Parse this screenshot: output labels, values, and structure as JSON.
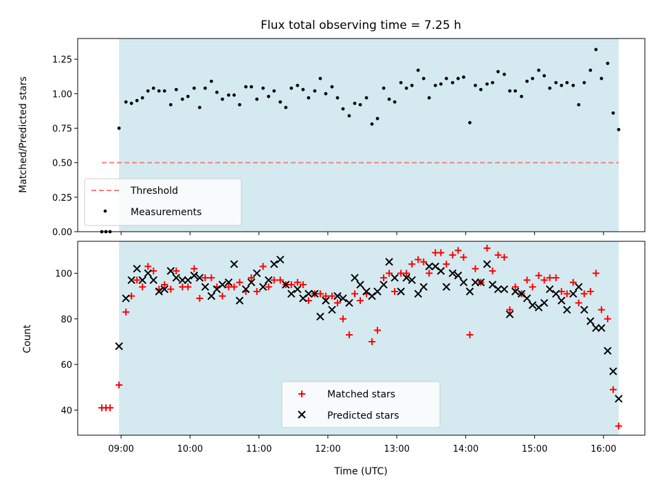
{
  "chart_data": [
    {
      "type": "scatter",
      "title": "Flux total observing time = 7.25 h",
      "ylabel": "Matched/Predicted stars",
      "xlabel": "",
      "ylim": [
        0,
        1.4
      ],
      "yticks": [
        0.0,
        0.25,
        0.5,
        0.75,
        1.0,
        1.25
      ],
      "ytick_labels": [
        "0.00",
        "0.25",
        "0.50",
        "0.75",
        "1.00",
        "1.25"
      ],
      "xlim": [
        8.37,
        16.6
      ],
      "xticks": [
        9,
        10,
        11,
        12,
        13,
        14,
        15,
        16
      ],
      "observing_window": [
        8.97,
        16.22
      ],
      "shade_color": "#d4eaf0",
      "legend": {
        "position": "lower-left",
        "threshold_label": "Threshold",
        "measurements_label": "Measurements"
      },
      "threshold": {
        "value": 0.5,
        "x_range": [
          8.72,
          16.22
        ],
        "color": "#f08080",
        "style": "dashed"
      },
      "series": [
        {
          "name": "Measurements",
          "color": "#000000",
          "x": [
            8.72,
            8.78,
            8.84,
            8.97,
            9.07,
            9.15,
            9.23,
            9.31,
            9.39,
            9.47,
            9.55,
            9.63,
            9.72,
            9.8,
            9.89,
            9.97,
            10.06,
            10.14,
            10.22,
            10.31,
            10.39,
            10.47,
            10.56,
            10.64,
            10.72,
            10.81,
            10.89,
            10.97,
            11.06,
            11.14,
            11.22,
            11.31,
            11.39,
            11.47,
            11.56,
            11.64,
            11.72,
            11.81,
            11.89,
            11.97,
            12.06,
            12.14,
            12.22,
            12.31,
            12.39,
            12.47,
            12.56,
            12.64,
            12.72,
            12.81,
            12.89,
            12.97,
            13.06,
            13.14,
            13.22,
            13.31,
            13.39,
            13.47,
            13.56,
            13.64,
            13.72,
            13.81,
            13.89,
            13.97,
            14.06,
            14.14,
            14.22,
            14.31,
            14.39,
            14.47,
            14.56,
            14.64,
            14.72,
            14.81,
            14.89,
            14.97,
            15.06,
            15.14,
            15.22,
            15.31,
            15.39,
            15.47,
            15.56,
            15.64,
            15.72,
            15.81,
            15.89,
            15.97,
            16.06,
            16.14,
            16.22
          ],
          "values": [
            0.0,
            0.0,
            0.0,
            0.75,
            0.94,
            0.93,
            0.95,
            0.97,
            1.02,
            1.04,
            1.02,
            1.02,
            0.92,
            1.03,
            0.96,
            0.98,
            1.04,
            0.9,
            1.04,
            1.09,
            1.01,
            0.96,
            0.99,
            0.99,
            0.92,
            1.05,
            1.05,
            0.96,
            1.04,
            0.98,
            1.02,
            0.94,
            0.9,
            1.04,
            1.06,
            1.03,
            0.97,
            1.02,
            1.11,
            1.0,
            1.05,
            0.97,
            0.89,
            0.84,
            0.93,
            0.92,
            0.97,
            0.78,
            0.82,
            1.04,
            0.96,
            0.94,
            1.08,
            1.04,
            1.06,
            1.17,
            1.11,
            0.97,
            1.06,
            1.07,
            1.11,
            1.08,
            1.11,
            1.12,
            0.79,
            1.06,
            1.03,
            1.07,
            1.08,
            1.16,
            1.14,
            1.02,
            1.02,
            0.98,
            1.09,
            1.11,
            1.17,
            1.13,
            1.04,
            1.08,
            1.06,
            1.08,
            1.06,
            0.92,
            1.08,
            1.17,
            1.32,
            1.11,
            1.22,
            0.86,
            0.74
          ]
        }
      ]
    },
    {
      "type": "scatter",
      "title": "",
      "ylabel": "Count",
      "xlabel": "Time (UTC)",
      "ylim": [
        29,
        114
      ],
      "yticks": [
        40,
        60,
        80,
        100
      ],
      "ytick_labels": [
        "40",
        "60",
        "80",
        "100"
      ],
      "xlim": [
        8.37,
        16.6
      ],
      "xticks": [
        9,
        10,
        11,
        12,
        13,
        14,
        15,
        16
      ],
      "xtick_labels": [
        "09:00",
        "10:00",
        "11:00",
        "12:00",
        "13:00",
        "14:00",
        "15:00",
        "16:00"
      ],
      "observing_window": [
        8.97,
        16.22
      ],
      "shade_color": "#d4eaf0",
      "legend": {
        "position": "lower-center"
      },
      "series": [
        {
          "name": "Matched stars",
          "color": "#ff0000",
          "marker": "plus",
          "x": [
            8.72,
            8.78,
            8.84,
            8.97,
            9.07,
            9.15,
            9.23,
            9.31,
            9.39,
            9.47,
            9.55,
            9.63,
            9.72,
            9.8,
            9.89,
            9.97,
            10.06,
            10.14,
            10.22,
            10.31,
            10.39,
            10.47,
            10.56,
            10.64,
            10.72,
            10.81,
            10.89,
            10.97,
            11.06,
            11.14,
            11.22,
            11.31,
            11.39,
            11.47,
            11.56,
            11.64,
            11.72,
            11.81,
            11.89,
            11.97,
            12.06,
            12.14,
            12.22,
            12.31,
            12.39,
            12.47,
            12.56,
            12.64,
            12.72,
            12.81,
            12.89,
            12.97,
            13.06,
            13.14,
            13.22,
            13.31,
            13.39,
            13.47,
            13.56,
            13.64,
            13.72,
            13.81,
            13.89,
            13.97,
            14.06,
            14.14,
            14.22,
            14.31,
            14.39,
            14.47,
            14.56,
            14.64,
            14.72,
            14.81,
            14.89,
            14.97,
            15.06,
            15.14,
            15.22,
            15.31,
            15.39,
            15.47,
            15.56,
            15.64,
            15.72,
            15.81,
            15.89,
            15.97,
            16.06,
            16.14,
            16.22
          ],
          "values": [
            41,
            41,
            41,
            51,
            83,
            90,
            97,
            94,
            103,
            101,
            93,
            95,
            93,
            101,
            94,
            94,
            102,
            89,
            98,
            98,
            94,
            90,
            94,
            94,
            96,
            92,
            98,
            92,
            103,
            94,
            97,
            97,
            95,
            95,
            96,
            95,
            88,
            91,
            91,
            90,
            90,
            87,
            80,
            73,
            91,
            88,
            91,
            70,
            75,
            98,
            100,
            92,
            100,
            100,
            104,
            106,
            105,
            100,
            109,
            109,
            104,
            108,
            110,
            107,
            73,
            102,
            96,
            111,
            101,
            108,
            107,
            84,
            94,
            91,
            97,
            94,
            99,
            97,
            98,
            98,
            92,
            91,
            96,
            87,
            91,
            92,
            100,
            84,
            80,
            49,
            33
          ]
        },
        {
          "name": "Predicted stars",
          "color": "#000000",
          "marker": "x",
          "x": [
            8.97,
            9.07,
            9.15,
            9.23,
            9.31,
            9.39,
            9.47,
            9.55,
            9.63,
            9.72,
            9.8,
            9.89,
            9.97,
            10.06,
            10.14,
            10.22,
            10.31,
            10.39,
            10.47,
            10.56,
            10.64,
            10.72,
            10.81,
            10.89,
            10.97,
            11.06,
            11.14,
            11.22,
            11.31,
            11.39,
            11.47,
            11.56,
            11.64,
            11.72,
            11.81,
            11.89,
            11.97,
            12.06,
            12.14,
            12.22,
            12.31,
            12.39,
            12.47,
            12.56,
            12.64,
            12.72,
            12.81,
            12.89,
            12.97,
            13.06,
            13.14,
            13.22,
            13.31,
            13.39,
            13.47,
            13.56,
            13.64,
            13.72,
            13.81,
            13.89,
            13.97,
            14.06,
            14.14,
            14.22,
            14.31,
            14.39,
            14.47,
            14.56,
            14.64,
            14.72,
            14.81,
            14.89,
            14.97,
            15.06,
            15.14,
            15.22,
            15.31,
            15.39,
            15.47,
            15.56,
            15.64,
            15.72,
            15.81,
            15.89,
            15.97,
            16.06,
            16.14,
            16.22
          ],
          "values": [
            68,
            89,
            97,
            102,
            97,
            100,
            97,
            92,
            93,
            101,
            98,
            97,
            97,
            99,
            98,
            94,
            90,
            93,
            95,
            96,
            104,
            88,
            93,
            96,
            100,
            94,
            97,
            104,
            106,
            95,
            91,
            93,
            89,
            91,
            91,
            81,
            88,
            84,
            90,
            89,
            87,
            98,
            95,
            92,
            90,
            92,
            95,
            105,
            98,
            92,
            98,
            97,
            91,
            94,
            103,
            103,
            101,
            94,
            100,
            99,
            96,
            92,
            96,
            96,
            104,
            95,
            93,
            93,
            82,
            92,
            91,
            89,
            86,
            85,
            87,
            93,
            91,
            88,
            84,
            91,
            94,
            84,
            79,
            76,
            76,
            66,
            57,
            45
          ]
        }
      ]
    }
  ]
}
